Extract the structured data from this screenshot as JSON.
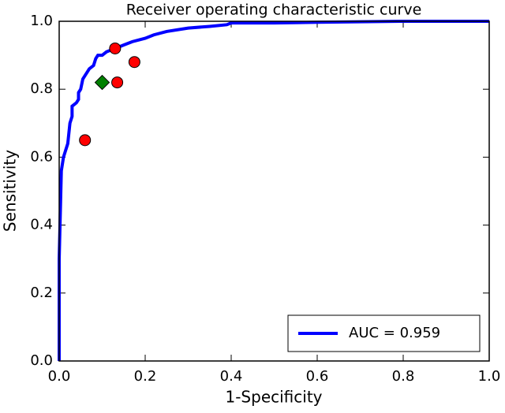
{
  "chart_data": {
    "type": "line",
    "title": "Receiver operating characteristic curve",
    "xlabel": "1-Specificity",
    "ylabel": "Sensitivity",
    "xlim": [
      0,
      1
    ],
    "ylim": [
      0,
      1
    ],
    "xticks": [
      {
        "value": 0,
        "label": "0.0"
      },
      {
        "value": 0.2,
        "label": "0.2"
      },
      {
        "value": 0.4,
        "label": "0.4"
      },
      {
        "value": 0.6,
        "label": "0.6"
      },
      {
        "value": 0.8,
        "label": "0.8"
      },
      {
        "value": 1,
        "label": "1.0"
      }
    ],
    "yticks": [
      {
        "value": 0,
        "label": "0.0"
      },
      {
        "value": 0.2,
        "label": "0.2"
      },
      {
        "value": 0.4,
        "label": "0.4"
      },
      {
        "value": 0.6,
        "label": "0.6"
      },
      {
        "value": 0.8,
        "label": "0.8"
      },
      {
        "value": 1,
        "label": "1.0"
      }
    ],
    "legend": "lower right",
    "series": [
      {
        "name": "AUC = 0.959",
        "type": "line",
        "color": "#0000ff",
        "x": [
          0,
          0,
          0.005,
          0.01,
          0.015,
          0.02,
          0.025,
          0.03,
          0.03,
          0.04,
          0.045,
          0.045,
          0.05,
          0.055,
          0.06,
          0.065,
          0.07,
          0.08,
          0.085,
          0.09,
          0.1,
          0.11,
          0.13,
          0.15,
          0.17,
          0.2,
          0.22,
          0.25,
          0.3,
          0.35,
          0.39,
          0.4,
          0.5,
          0.6,
          0.8,
          1
        ],
        "values": [
          0,
          0.3,
          0.56,
          0.6,
          0.62,
          0.64,
          0.7,
          0.72,
          0.75,
          0.76,
          0.77,
          0.79,
          0.8,
          0.83,
          0.84,
          0.85,
          0.86,
          0.87,
          0.89,
          0.9,
          0.9,
          0.91,
          0.92,
          0.93,
          0.94,
          0.95,
          0.96,
          0.97,
          0.98,
          0.985,
          0.99,
          0.995,
          0.995,
          0.997,
          1,
          1
        ]
      },
      {
        "type": "scatter",
        "marker": "circle",
        "color": "#ff0000",
        "x": [
          0.06,
          0.13,
          0.135,
          0.175
        ],
        "values": [
          0.65,
          0.92,
          0.82,
          0.88
        ]
      },
      {
        "type": "scatter",
        "marker": "diamond",
        "color": "#008000",
        "x": [
          0.1
        ],
        "values": [
          0.82
        ]
      }
    ]
  }
}
